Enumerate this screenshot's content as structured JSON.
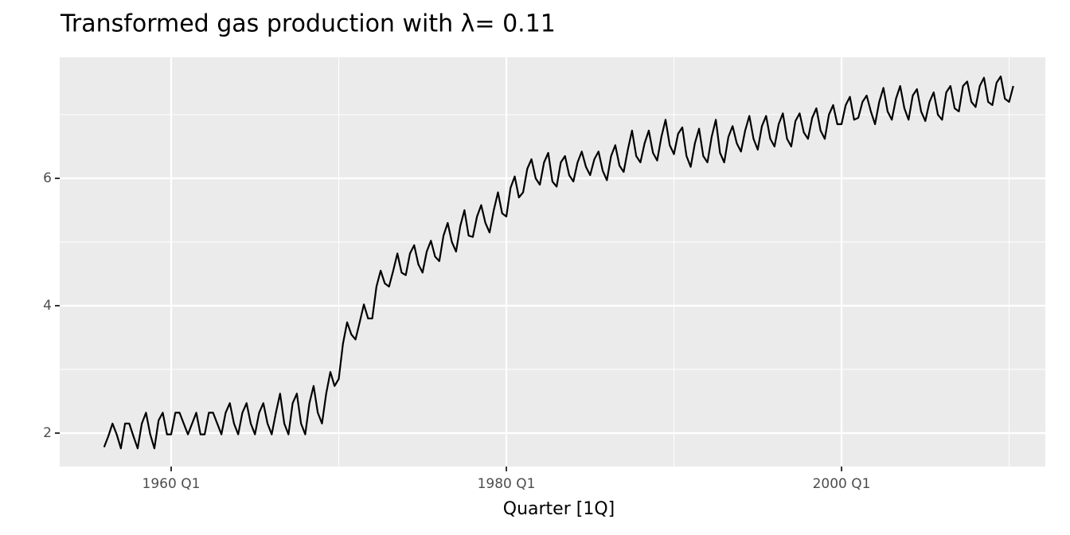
{
  "chart_data": {
    "type": "line",
    "title": "Transformed gas production with λ= 0.11",
    "x_label": "Quarter [1Q]",
    "x": [
      1956,
      1956.25,
      1956.5,
      1956.75,
      1957,
      1957.25,
      1957.5,
      1957.75,
      1958,
      1958.25,
      1958.5,
      1958.75,
      1959,
      1959.25,
      1959.5,
      1959.75,
      1960,
      1960.25,
      1960.5,
      1960.75,
      1961,
      1961.25,
      1961.5,
      1961.75,
      1962,
      1962.25,
      1962.5,
      1962.75,
      1963,
      1963.25,
      1963.5,
      1963.75,
      1964,
      1964.25,
      1964.5,
      1964.75,
      1965,
      1965.25,
      1965.5,
      1965.75,
      1966,
      1966.25,
      1966.5,
      1966.75,
      1967,
      1967.25,
      1967.5,
      1967.75,
      1968,
      1968.25,
      1968.5,
      1968.75,
      1969,
      1969.25,
      1969.5,
      1969.75,
      1970,
      1970.25,
      1970.5,
      1970.75,
      1971,
      1971.25,
      1971.5,
      1971.75,
      1972,
      1972.25,
      1972.5,
      1972.75,
      1973,
      1973.25,
      1973.5,
      1973.75,
      1974,
      1974.25,
      1974.5,
      1974.75,
      1975,
      1975.25,
      1975.5,
      1975.75,
      1976,
      1976.25,
      1976.5,
      1976.75,
      1977,
      1977.25,
      1977.5,
      1977.75,
      1978,
      1978.25,
      1978.5,
      1978.75,
      1979,
      1979.25,
      1979.5,
      1979.75,
      1980,
      1980.25,
      1980.5,
      1980.75,
      1981,
      1981.25,
      1981.5,
      1981.75,
      1982,
      1982.25,
      1982.5,
      1982.75,
      1983,
      1983.25,
      1983.5,
      1983.75,
      1984,
      1984.25,
      1984.5,
      1984.75,
      1985,
      1985.25,
      1985.5,
      1985.75,
      1986,
      1986.25,
      1986.5,
      1986.75,
      1987,
      1987.25,
      1987.5,
      1987.75,
      1988,
      1988.25,
      1988.5,
      1988.75,
      1989,
      1989.25,
      1989.5,
      1989.75,
      1990,
      1990.25,
      1990.5,
      1990.75,
      1991,
      1991.25,
      1991.5,
      1991.75,
      1992,
      1992.25,
      1992.5,
      1992.75,
      1993,
      1993.25,
      1993.5,
      1993.75,
      1994,
      1994.25,
      1994.5,
      1994.75,
      1995,
      1995.25,
      1995.5,
      1995.75,
      1996,
      1996.25,
      1996.5,
      1996.75,
      1997,
      1997.25,
      1997.5,
      1997.75,
      1998,
      1998.25,
      1998.5,
      1998.75,
      1999,
      1999.25,
      1999.5,
      1999.75,
      2000,
      2000.25,
      2000.5,
      2000.75,
      2001,
      2001.25,
      2001.5,
      2001.75,
      2002,
      2002.25,
      2002.5,
      2002.75,
      2003,
      2003.25,
      2003.5,
      2003.75,
      2004,
      2004.25,
      2004.5,
      2004.75,
      2005,
      2005.25,
      2005.5,
      2005.75,
      2006,
      2006.25,
      2006.5,
      2006.75,
      2007,
      2007.25,
      2007.5,
      2007.75,
      2008,
      2008.25,
      2008.5,
      2008.75,
      2009,
      2009.25,
      2009.5,
      2009.75,
      2010,
      2010.25
    ],
    "values": [
      1.78,
      1.95,
      2.15,
      1.98,
      1.76,
      2.15,
      2.15,
      1.95,
      1.76,
      2.15,
      2.32,
      1.98,
      1.76,
      2.2,
      2.32,
      1.98,
      1.98,
      2.32,
      2.32,
      2.15,
      1.98,
      2.15,
      2.32,
      1.98,
      1.98,
      2.32,
      2.32,
      2.15,
      1.98,
      2.32,
      2.47,
      2.15,
      1.98,
      2.32,
      2.47,
      2.15,
      1.98,
      2.32,
      2.47,
      2.15,
      1.98,
      2.32,
      2.62,
      2.15,
      1.98,
      2.47,
      2.62,
      2.15,
      1.98,
      2.47,
      2.74,
      2.32,
      2.15,
      2.62,
      2.96,
      2.74,
      2.85,
      3.4,
      3.74,
      3.55,
      3.47,
      3.74,
      4.02,
      3.8,
      3.8,
      4.3,
      4.55,
      4.35,
      4.3,
      4.55,
      4.82,
      4.52,
      4.48,
      4.82,
      4.95,
      4.65,
      4.52,
      4.85,
      5.02,
      4.77,
      4.7,
      5.1,
      5.3,
      5.0,
      4.85,
      5.25,
      5.5,
      5.1,
      5.08,
      5.4,
      5.58,
      5.3,
      5.15,
      5.5,
      5.78,
      5.45,
      5.4,
      5.85,
      6.03,
      5.7,
      5.78,
      6.15,
      6.3,
      6.0,
      5.9,
      6.25,
      6.4,
      5.95,
      5.87,
      6.25,
      6.35,
      6.05,
      5.95,
      6.25,
      6.42,
      6.18,
      6.05,
      6.3,
      6.42,
      6.12,
      5.97,
      6.35,
      6.52,
      6.2,
      6.1,
      6.45,
      6.75,
      6.35,
      6.25,
      6.55,
      6.75,
      6.4,
      6.28,
      6.65,
      6.92,
      6.52,
      6.38,
      6.7,
      6.8,
      6.35,
      6.18,
      6.55,
      6.78,
      6.35,
      6.25,
      6.65,
      6.92,
      6.4,
      6.25,
      6.65,
      6.82,
      6.55,
      6.42,
      6.75,
      6.98,
      6.62,
      6.45,
      6.82,
      6.98,
      6.62,
      6.5,
      6.85,
      7.02,
      6.62,
      6.5,
      6.9,
      7.02,
      6.72,
      6.62,
      6.95,
      7.1,
      6.75,
      6.62,
      7.0,
      7.15,
      6.85,
      6.85,
      7.15,
      7.28,
      6.92,
      6.95,
      7.2,
      7.3,
      7.05,
      6.85,
      7.2,
      7.42,
      7.05,
      6.92,
      7.25,
      7.45,
      7.1,
      6.92,
      7.3,
      7.4,
      7.05,
      6.9,
      7.2,
      7.35,
      7.0,
      6.92,
      7.35,
      7.45,
      7.1,
      7.05,
      7.45,
      7.52,
      7.2,
      7.12,
      7.45,
      7.58,
      7.2,
      7.15,
      7.5,
      7.6,
      7.25,
      7.2,
      7.45
    ],
    "color": "#000000",
    "xlim": [
      1953.35,
      2012.16
    ],
    "xticks": [
      {
        "value": 1960,
        "label": "1960 Q1"
      },
      {
        "value": 1980,
        "label": "1980 Q1"
      },
      {
        "value": 2000,
        "label": "2000 Q1"
      }
    ],
    "x_minor_grid": [
      1970,
      1990,
      2010
    ],
    "ylim": [
      1.475,
      7.9
    ],
    "yticks": [
      2,
      4,
      6
    ],
    "y_minor_grid": [
      3,
      5,
      7
    ],
    "grid": true
  }
}
